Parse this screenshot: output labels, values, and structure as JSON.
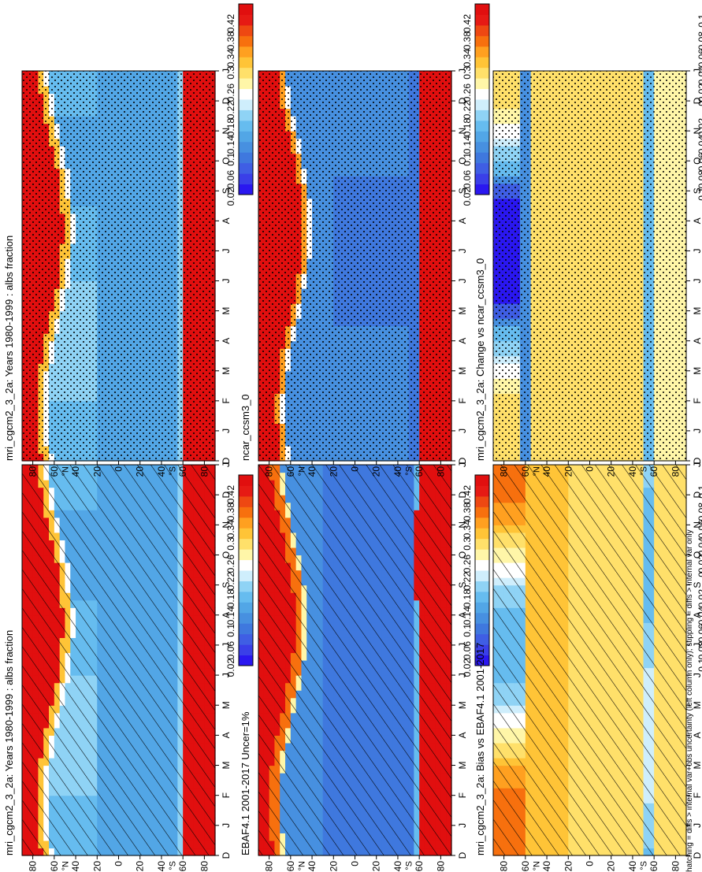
{
  "figure_note": "hatching = diffs > internal var+obs uncertainty (left column only); stippling = diffs > internal var only",
  "colors": {
    "abs_levels": [
      "#2a17f0",
      "#3a3fe8",
      "#3f5ee4",
      "#3f78de",
      "#4790e0",
      "#52a6e6",
      "#66bcef",
      "#8fd3f5",
      "#cfeefc",
      "#ffffff",
      "#fff6a8",
      "#ffe06a",
      "#ffc437",
      "#ffa020",
      "#f7700e",
      "#ee4812",
      "#e61a14",
      "#e10f0f"
    ],
    "diff_levels": [
      "#2a17f0",
      "#3f5ee4",
      "#4790e0",
      "#66bcef",
      "#8fd3f5",
      "#cfeefc",
      "#ffffff",
      "#fff6a8",
      "#ffe06a",
      "#ffc437",
      "#ffa020",
      "#f7700e",
      "#e61a14"
    ]
  },
  "chart_data": [
    {
      "type": "heatmap",
      "title": "mri_cgcm2_3_2a: Years 1980-1999 : albs fraction",
      "x_ticks": [
        "D",
        "J",
        "F",
        "M",
        "A",
        "M",
        "J",
        "J",
        "A",
        "S",
        "O",
        "N",
        "D",
        "J"
      ],
      "y_ticks": [
        "80",
        "60",
        "40",
        "20",
        "0",
        "20",
        "40",
        "60",
        "80"
      ],
      "y_hemisphere_labels": [
        "°N",
        "°S"
      ],
      "colorbar_ticks": [
        "0.42",
        "0.38",
        "0.34",
        "0.3",
        "0.26",
        "0.22",
        "0.18",
        "0.14",
        "0.1",
        "0.06",
        "0.02"
      ],
      "overlay": "hatching",
      "field": "model"
    },
    {
      "type": "heatmap",
      "title": "mri_cgcm2_3_2a: Years 1980-1999 : albs fraction",
      "x_ticks": [
        "D",
        "J",
        "F",
        "M",
        "A",
        "M",
        "J",
        "J",
        "A",
        "S",
        "O",
        "N",
        "D",
        "J"
      ],
      "y_ticks": [
        "80",
        "60",
        "40",
        "20",
        "0",
        "20",
        "40",
        "60",
        "80"
      ],
      "y_hemisphere_labels": [
        "°N",
        "°S"
      ],
      "colorbar_ticks": [
        "0.42",
        "0.38",
        "0.34",
        "0.3",
        "0.26",
        "0.22",
        "0.18",
        "0.14",
        "0.1",
        "0.06",
        "0.02"
      ],
      "overlay": "stipple",
      "field": "model"
    },
    {
      "type": "heatmap",
      "title": "EBAF4.1 2001-2017 Uncer=1%",
      "x_ticks": [
        "D",
        "J",
        "F",
        "M",
        "A",
        "M",
        "J",
        "J",
        "A",
        "S",
        "O",
        "N",
        "D",
        "J"
      ],
      "y_ticks": [
        "80",
        "60",
        "40",
        "20",
        "0",
        "20",
        "40",
        "60",
        "80"
      ],
      "y_hemisphere_labels": [
        "°N",
        "°S"
      ],
      "colorbar_ticks": [
        "0.42",
        "0.38",
        "0.34",
        "0.3",
        "0.26",
        "0.22",
        "0.18",
        "0.14",
        "0.1",
        "0.06",
        "0.02"
      ],
      "overlay": "hatching",
      "field": "obs"
    },
    {
      "type": "heatmap",
      "title": "ncar_ccsm3_0",
      "x_ticks": [
        "D",
        "J",
        "F",
        "M",
        "A",
        "M",
        "J",
        "J",
        "A",
        "S",
        "O",
        "N",
        "D",
        "J"
      ],
      "y_ticks": [
        "80",
        "60",
        "40",
        "20",
        "0",
        "20",
        "40",
        "60",
        "80"
      ],
      "y_hemisphere_labels": [
        "°N",
        "°S"
      ],
      "colorbar_ticks": [
        "0.42",
        "0.38",
        "0.34",
        "0.3",
        "0.26",
        "0.22",
        "0.18",
        "0.14",
        "0.1",
        "0.06",
        "0.02"
      ],
      "overlay": "stipple",
      "field": "ncar"
    },
    {
      "type": "heatmap",
      "title": "mri_cgcm2_3_2a: Bias vs EBAF4.1 2001-2017",
      "x_ticks": [
        "D",
        "J",
        "F",
        "M",
        "A",
        "M",
        "J",
        "J",
        "A",
        "S",
        "O",
        "N",
        "D",
        "J"
      ],
      "y_ticks": [
        "80",
        "60",
        "40",
        "20",
        "0",
        "20",
        "40",
        "60",
        "80"
      ],
      "y_hemisphere_labels": [
        "°N",
        "°S"
      ],
      "colorbar_ticks": [
        "0.1",
        "0.08",
        "0.06",
        "0.04",
        "0.02",
        "0",
        "-0.02",
        "-0.04",
        "-0.06",
        "-0.08",
        "-0.1"
      ],
      "overlay": "hatching",
      "field": "bias"
    },
    {
      "type": "heatmap",
      "title": "mri_cgcm2_3_2a: Change vs ncar_ccsm3_0",
      "x_ticks": [
        "D",
        "J",
        "F",
        "M",
        "A",
        "M",
        "J",
        "J",
        "A",
        "S",
        "O",
        "N",
        "D",
        "J"
      ],
      "y_ticks": [
        "80",
        "60",
        "40",
        "20",
        "0",
        "20",
        "40",
        "60",
        "80"
      ],
      "y_hemisphere_labels": [
        "°N",
        "°S"
      ],
      "colorbar_ticks": [
        "0.1",
        "0.08",
        "0.06",
        "0.04",
        "0.02",
        "0",
        "-0.02",
        "-0.04",
        "-0.06",
        "-0.08",
        "-0.1"
      ],
      "overlay": "stipple",
      "field": "change"
    }
  ]
}
